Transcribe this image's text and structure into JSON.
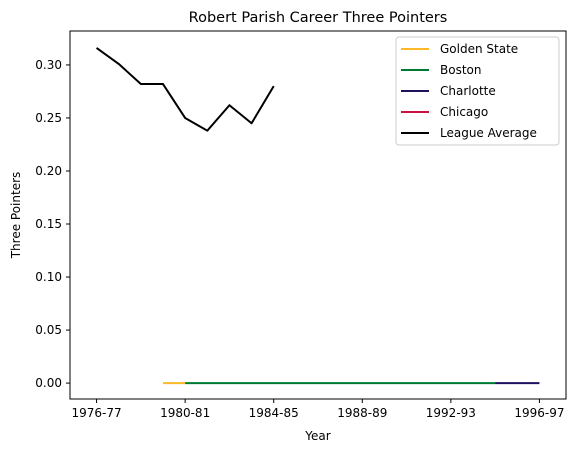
{
  "chart_data": {
    "type": "line",
    "title": "Robert Parish Career Three Pointers",
    "xlabel": "Year",
    "ylabel": "Three Pointers",
    "x_ticks": [
      "1976-77",
      "1980-81",
      "1984-85",
      "1988-89",
      "1992-93",
      "1996-97"
    ],
    "x_tick_index": [
      0,
      4,
      8,
      12,
      16,
      20
    ],
    "xlim": [
      -1.2,
      21.2
    ],
    "ylim": [
      -0.015,
      0.332
    ],
    "y_ticks": [
      0.0,
      0.05,
      0.1,
      0.15,
      0.2,
      0.25,
      0.3
    ],
    "y_tick_labels": [
      "0.00",
      "0.05",
      "0.10",
      "0.15",
      "0.20",
      "0.25",
      "0.30"
    ],
    "legend_position": "upper right",
    "series": [
      {
        "name": "Golden State",
        "color": "#FDB927",
        "x_index": [
          3,
          4
        ],
        "values": [
          0.0,
          0.0
        ]
      },
      {
        "name": "Boston",
        "color": "#007A33",
        "x_index": [
          4,
          5,
          6,
          7,
          8,
          9,
          10,
          11,
          12,
          13,
          14,
          15,
          16,
          17,
          18
        ],
        "values": [
          0,
          0,
          0,
          0,
          0,
          0,
          0,
          0,
          0,
          0,
          0,
          0,
          0,
          0,
          0
        ]
      },
      {
        "name": "Charlotte",
        "color": "#1D1160",
        "x_index": [
          18,
          19,
          20
        ],
        "values": [
          0.0,
          0.0,
          0.0
        ]
      },
      {
        "name": "Chicago",
        "color": "#CE1141",
        "x_index": [],
        "values": []
      },
      {
        "name": "League Average",
        "color": "#000000",
        "x_index": [
          0,
          1,
          2,
          3,
          4,
          5,
          6,
          7,
          8
        ],
        "values": [
          0.316,
          0.301,
          0.282,
          0.282,
          0.25,
          0.238,
          0.262,
          0.245,
          0.28
        ]
      }
    ]
  }
}
